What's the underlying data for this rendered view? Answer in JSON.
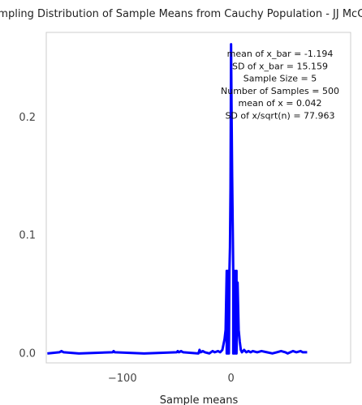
{
  "chart_data": {
    "type": "line",
    "title": "Sampling Distribution of Sample Means from Cauchy Population -  JJ McCoy",
    "xlabel": "Sample means",
    "ylabel": "",
    "xlim": [
      -170,
      110
    ],
    "ylim": [
      -0.008,
      0.272
    ],
    "x_ticks": [
      -100,
      0
    ],
    "x_tick_labels": [
      "−100",
      "0"
    ],
    "y_ticks": [
      0,
      0.1,
      0.2
    ],
    "y_tick_labels": [
      "0.0",
      "0.1",
      "0.2"
    ],
    "grid": false,
    "annotations": [
      "mean of x_bar = -1.194",
      "SD of x_bar = 15.159",
      "Sample Size = 5",
      "Number of Samples = 500",
      "mean of x = 0.042",
      "SD of x/sqrt(n) = 77.963"
    ],
    "series": [
      {
        "color": "#0000ff",
        "points": [
          [
            -169,
            0.0
          ],
          [
            -158,
            0.001
          ],
          [
            -156,
            0.002
          ],
          [
            -154,
            0.001
          ],
          [
            -140,
            0.0
          ],
          [
            -109,
            0.001
          ],
          [
            -108,
            0.002
          ],
          [
            -107,
            0.001
          ],
          [
            -80,
            0.0
          ],
          [
            -50,
            0.001
          ],
          [
            -49,
            0.002
          ],
          [
            -48,
            0.001
          ],
          [
            -46,
            0.002
          ],
          [
            -44,
            0.001
          ],
          [
            -30,
            0.0
          ],
          [
            -29,
            0.003
          ],
          [
            -28,
            0.001
          ],
          [
            -26,
            0.002
          ],
          [
            -24,
            0.001
          ],
          [
            -20,
            0.0
          ],
          [
            -17,
            0.002
          ],
          [
            -15,
            0.001
          ],
          [
            -12,
            0.002
          ],
          [
            -10,
            0.001
          ],
          [
            -8,
            0.003
          ],
          [
            -6,
            0.012
          ],
          [
            -5,
            0.02
          ],
          [
            -4,
            0.07
          ],
          [
            -4,
            0.0
          ],
          [
            -3,
            0.07
          ],
          [
            -3,
            0.0
          ],
          [
            -2,
            0.07
          ],
          [
            -2,
            0.0
          ],
          [
            -1.5,
            0.07
          ],
          [
            -1,
            0.09
          ],
          [
            -0.5,
            0.14
          ],
          [
            0,
            0.262
          ],
          [
            0.5,
            0.2
          ],
          [
            1,
            0.15
          ],
          [
            1.5,
            0.11
          ],
          [
            2,
            0.07
          ],
          [
            2,
            0.0
          ],
          [
            3,
            0.07
          ],
          [
            3,
            0.0
          ],
          [
            4,
            0.07
          ],
          [
            4,
            0.0
          ],
          [
            5,
            0.07
          ],
          [
            5,
            0.0
          ],
          [
            6,
            0.06
          ],
          [
            7,
            0.02
          ],
          [
            8,
            0.01
          ],
          [
            9,
            0.003
          ],
          [
            10,
            0.001
          ],
          [
            12,
            0.003
          ],
          [
            14,
            0.001
          ],
          [
            16,
            0.002
          ],
          [
            18,
            0.001
          ],
          [
            20,
            0.002
          ],
          [
            24,
            0.001
          ],
          [
            28,
            0.002
          ],
          [
            33,
            0.001
          ],
          [
            38,
            0.0
          ],
          [
            42,
            0.001
          ],
          [
            46,
            0.002
          ],
          [
            50,
            0.001
          ],
          [
            52,
            0.0
          ],
          [
            57,
            0.002
          ],
          [
            60,
            0.001
          ],
          [
            64,
            0.002
          ],
          [
            66,
            0.001
          ],
          [
            70,
            0.001
          ]
        ]
      }
    ]
  }
}
